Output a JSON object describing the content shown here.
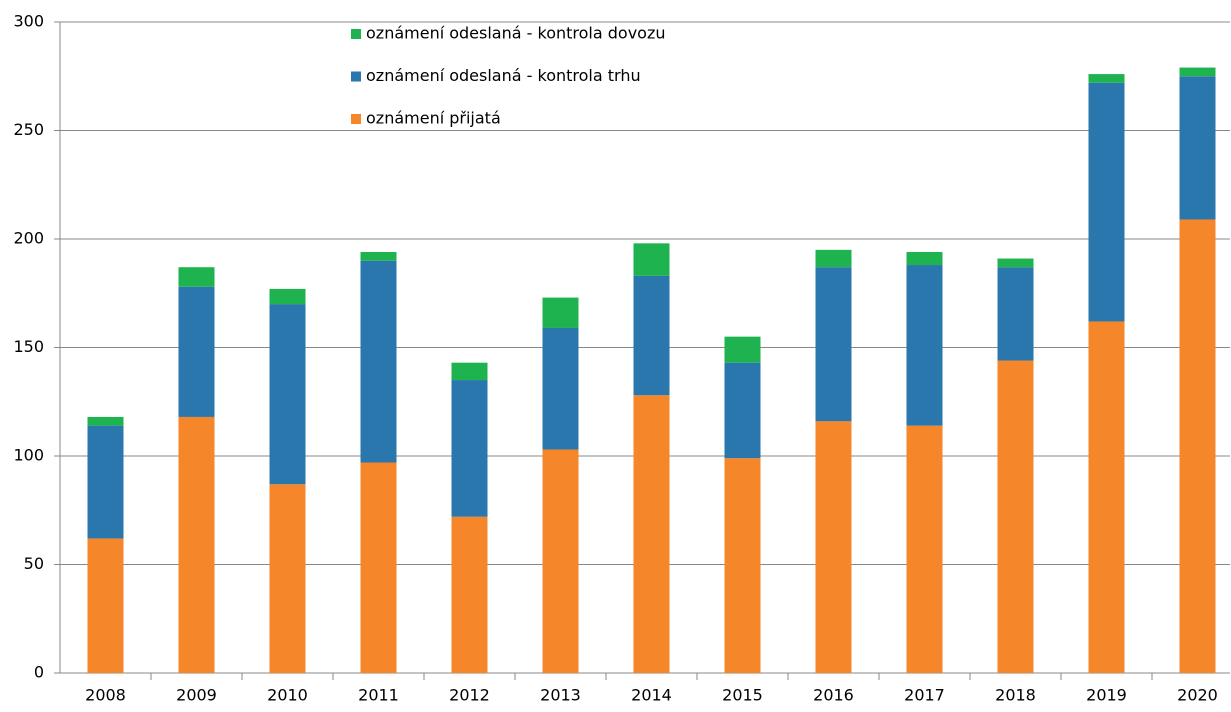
{
  "chart_data": {
    "type": "stacked_bar",
    "categories": [
      "2008",
      "2009",
      "2010",
      "2011",
      "2012",
      "2013",
      "2014",
      "2015",
      "2016",
      "2017",
      "2018",
      "2019",
      "2020"
    ],
    "series": [
      {
        "name": "oznámení přijatá",
        "color": "#f5862a",
        "values": [
          62,
          118,
          87,
          97,
          72,
          103,
          128,
          99,
          116,
          114,
          144,
          162,
          209
        ]
      },
      {
        "name": "oznámení odeslaná - kontrola trhu",
        "color": "#2a77ad",
        "values": [
          52,
          60,
          83,
          93,
          63,
          56,
          55,
          44,
          71,
          74,
          43,
          110,
          66
        ]
      },
      {
        "name": "oznámení odeslaná - kontrola dovozu",
        "color": "#1fb350",
        "values": [
          4,
          9,
          7,
          4,
          8,
          14,
          15,
          12,
          8,
          6,
          4,
          4,
          4
        ]
      }
    ],
    "ylim": [
      0,
      300
    ],
    "yticks": [
      0,
      50,
      100,
      150,
      200,
      250,
      300
    ],
    "grid": true,
    "legend": "top"
  }
}
